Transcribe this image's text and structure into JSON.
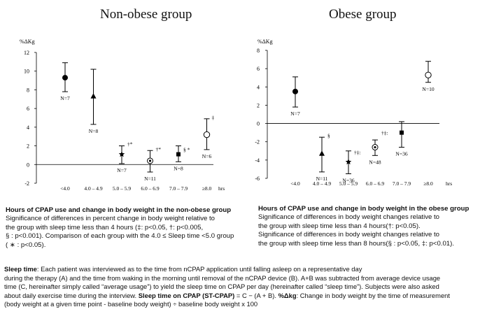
{
  "panels": {
    "left": {
      "title": "Non-obese group",
      "caption": {
        "heading": "Hours of CPAP use and change in body weight in the non-obese group",
        "lines": [
          "Significance of differences in percent change in body weight relative to",
          "the group with sleep time less than 4 hours (‡: p<0.05, †: p<0.005,",
          "§ : p<0.001). Comparison of each group with the 4.0 ≤ Sleep time <5.0 group",
          "( ∗ : p<0.05)."
        ]
      }
    },
    "right": {
      "title": "Obese group",
      "caption": {
        "heading": "Hours of CPAP use and change in body weight in the obese group",
        "lines": [
          "Significance of differences in body weight changes relative to",
          " the group with sleep time less than 4 hours(†: p<0.05).",
          "Significance of differences in body weight changes relative to",
          "the group with sleep time less than 8 hours(§ : p<0.05, ‡: p<0.01)."
        ]
      }
    }
  },
  "footnote": {
    "line1_label": "Sleep time",
    "line1_text": ": Each patient was interviewed as to the time from nCPAP application until falling asleep on a representative day",
    "line2": "during the therapy (A) and the time from waking in the morning until removal of the nCPAP device (B). A+B was subtracted from average device usage",
    "line3": "time (C, hereinafter simply called “average usage”) to yield the sleep time on CPAP per day (hereinafter called “sleep time”). Subjects were also asked",
    "line4_text": "about daily exercise time during the interview. ",
    "line4_label": "Sleep time on CPAP (ST-CPAP)",
    "line4_mid": " = C − (A + B). ",
    "line4_label2": "%Δkg",
    "line4_end": ": Change in body weight by the time of measurement",
    "line5": "(body weight at a given time point - baseline body weight) ÷ baseline body weight x 100"
  },
  "chart_data": [
    {
      "type": "scatter",
      "title": "Non-obese group",
      "ylabel": "%ΔKg",
      "xlabel": "hrs",
      "categories": [
        "<4.0",
        "4.0 – 4.9",
        "5.0 – 5.9",
        "6.0 – 6.9",
        "7.0 – 7.9",
        "≥8.0"
      ],
      "ylim": [
        -2,
        12
      ],
      "yticks": [
        -2,
        0,
        2,
        4,
        6,
        8,
        10,
        12
      ],
      "points": [
        {
          "category": "<4.0",
          "value": 9.3,
          "low": 7.8,
          "high": 10.9,
          "marker": "filled-circle",
          "n_label": "N=7",
          "sig": ""
        },
        {
          "category": "4.0 – 4.9",
          "value": 7.3,
          "low": 4.3,
          "high": 10.2,
          "marker": "triangle",
          "n_label": "N=8",
          "sig": ""
        },
        {
          "category": "5.0 – 5.9",
          "value": 1.1,
          "low": 0.1,
          "high": 2.0,
          "marker": "star",
          "n_label": "N=7",
          "sig": "†*"
        },
        {
          "category": "6.0 – 6.9",
          "value": 0.4,
          "low": -0.8,
          "high": 1.5,
          "marker": "circle-dot",
          "n_label": "N=11",
          "sig": "†*"
        },
        {
          "category": "7.0 – 7.9",
          "value": 1.1,
          "low": 0.3,
          "high": 2.0,
          "marker": "square",
          "n_label": "N=8",
          "sig": "§ *"
        },
        {
          "category": "≥8.0",
          "value": 3.2,
          "low": 1.6,
          "high": 4.9,
          "marker": "open-circle",
          "n_label": "N=6",
          "sig": "‡"
        }
      ]
    },
    {
      "type": "scatter",
      "title": "Obese group",
      "ylabel": "%ΔKg",
      "xlabel": "hrs",
      "categories": [
        "<4.0",
        "4.0 – 4.9",
        "5.0 – 5.9",
        "6.0 – 6.9",
        "7.0 – 7.9",
        "≥8.0"
      ],
      "ylim": [
        -6,
        8
      ],
      "yticks": [
        -6,
        -4,
        -2,
        0,
        2,
        4,
        6,
        8
      ],
      "points": [
        {
          "category": "<4.0",
          "value": 3.5,
          "low": 1.8,
          "high": 5.1,
          "marker": "filled-circle",
          "n_label": "N=7",
          "sig": ""
        },
        {
          "category": "4.0 – 4.9",
          "value": -3.3,
          "low": -5.3,
          "high": -1.5,
          "marker": "triangle",
          "n_label": "N=11",
          "sig": "§"
        },
        {
          "category": "5.0 – 5.9",
          "value": -4.2,
          "low": -5.5,
          "high": -3.0,
          "marker": "star",
          "n_label": "N=36",
          "sig": "†‡:"
        },
        {
          "category": "6.0 – 6.9",
          "value": -2.6,
          "low": -3.5,
          "high": -1.8,
          "marker": "circle-dot",
          "n_label": "N=48",
          "sig": "†‡:"
        },
        {
          "category": "7.0 – 7.9",
          "value": -1.0,
          "low": -2.6,
          "high": 0.2,
          "marker": "square",
          "n_label": "N=36",
          "sig": ""
        },
        {
          "category": "≥8.0",
          "value": 5.3,
          "low": 4.5,
          "high": 6.8,
          "marker": "open-circle",
          "n_label": "N=10",
          "sig": ""
        }
      ]
    }
  ]
}
